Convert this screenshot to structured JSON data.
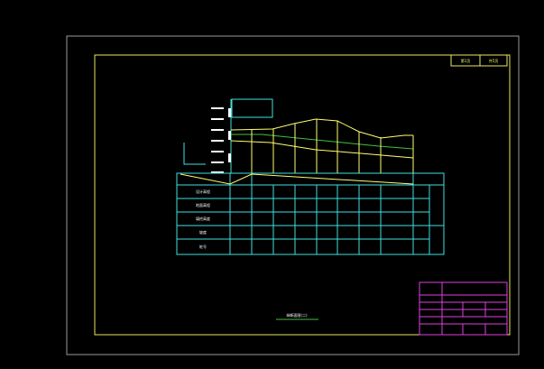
{
  "colors": {
    "background": "#000000",
    "outer_frame": "#9a9a9a",
    "inner_frame": "#e8e860",
    "table": "#40e0e0",
    "profile_yellow": "#ffff70",
    "profile_green": "#40c040",
    "title_block": "#e040e0"
  },
  "tags": [
    "第1页",
    "共5页"
  ],
  "table": {
    "rows": [
      "设计高程",
      "地面高程",
      "填挖高度",
      "坡度",
      "桩号"
    ]
  },
  "caption": "纵断面图(二)"
}
